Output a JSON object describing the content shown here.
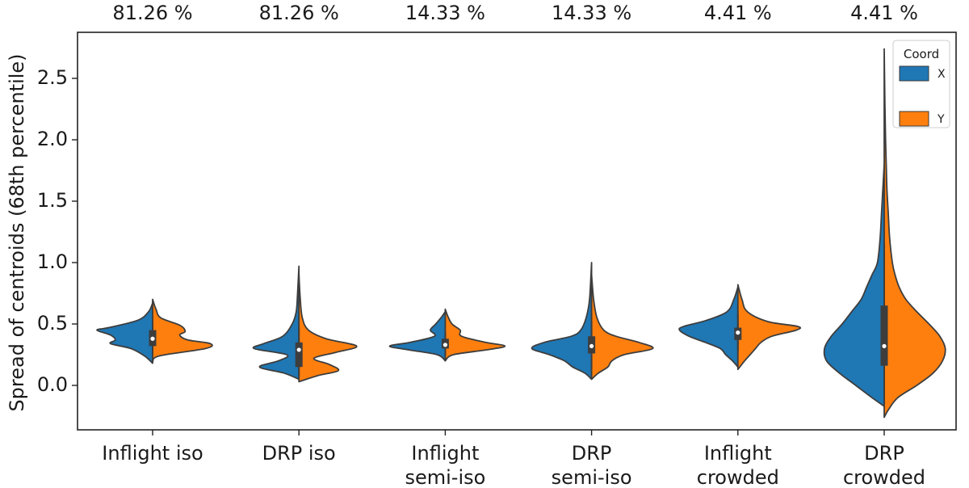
{
  "chart_data": {
    "type": "violin",
    "split": true,
    "title": "",
    "xlabel": "",
    "ylabel": "Spread of centroids (68th percentile)",
    "ylim": [
      -0.37,
      2.88
    ],
    "yticks": [
      "0.0",
      "0.5",
      "1.0",
      "1.5",
      "2.0",
      "2.5"
    ],
    "grid": false,
    "legend": {
      "title": "Coord",
      "position": "top-right",
      "entries": [
        {
          "label": "X",
          "color": "#1f77b4"
        },
        {
          "label": "Y",
          "color": "#ff7f0e"
        }
      ]
    },
    "categories": [
      {
        "lines": [
          "Inflight iso"
        ],
        "top_label": "81.26 %"
      },
      {
        "lines": [
          "DRP iso"
        ],
        "top_label": "81.26 %"
      },
      {
        "lines": [
          "Inflight",
          "semi-iso"
        ],
        "top_label": "14.33 %"
      },
      {
        "lines": [
          "DRP",
          "semi-iso"
        ],
        "top_label": "14.33 %"
      },
      {
        "lines": [
          "Inflight",
          "crowded"
        ],
        "top_label": "4.41 %"
      },
      {
        "lines": [
          "DRP",
          "crowded"
        ],
        "top_label": "4.41 %"
      }
    ],
    "series": [
      {
        "name": "X",
        "color": "#1f77b4",
        "violins": [
          [
            [
              0.18,
              0.0
            ],
            [
              0.24,
              0.12
            ],
            [
              0.3,
              0.32
            ],
            [
              0.34,
              0.62
            ],
            [
              0.37,
              0.55
            ],
            [
              0.41,
              0.62
            ],
            [
              0.45,
              0.82
            ],
            [
              0.47,
              0.65
            ],
            [
              0.53,
              0.22
            ],
            [
              0.6,
              0.06
            ],
            [
              0.67,
              0.0
            ]
          ],
          [
            [
              0.05,
              0.0
            ],
            [
              0.1,
              0.22
            ],
            [
              0.15,
              0.58
            ],
            [
              0.2,
              0.3
            ],
            [
              0.25,
              0.18
            ],
            [
              0.3,
              0.66
            ],
            [
              0.34,
              0.52
            ],
            [
              0.4,
              0.24
            ],
            [
              0.5,
              0.1
            ],
            [
              0.6,
              0.04
            ],
            [
              0.75,
              0.02
            ],
            [
              0.97,
              0.0
            ]
          ],
          [
            [
              0.2,
              0.0
            ],
            [
              0.25,
              0.12
            ],
            [
              0.29,
              0.55
            ],
            [
              0.32,
              0.82
            ],
            [
              0.35,
              0.52
            ],
            [
              0.4,
              0.16
            ],
            [
              0.45,
              0.22
            ],
            [
              0.5,
              0.14
            ],
            [
              0.56,
              0.05
            ],
            [
              0.6,
              0.0
            ]
          ],
          [
            [
              0.05,
              0.0
            ],
            [
              0.1,
              0.1
            ],
            [
              0.15,
              0.28
            ],
            [
              0.2,
              0.4
            ],
            [
              0.25,
              0.62
            ],
            [
              0.3,
              0.88
            ],
            [
              0.35,
              0.7
            ],
            [
              0.4,
              0.3
            ],
            [
              0.45,
              0.16
            ],
            [
              0.55,
              0.08
            ],
            [
              0.7,
              0.03
            ],
            [
              1.0,
              0.0
            ]
          ],
          [
            [
              0.15,
              0.0
            ],
            [
              0.2,
              0.08
            ],
            [
              0.25,
              0.18
            ],
            [
              0.3,
              0.26
            ],
            [
              0.35,
              0.48
            ],
            [
              0.4,
              0.72
            ],
            [
              0.45,
              0.86
            ],
            [
              0.48,
              0.8
            ],
            [
              0.53,
              0.46
            ],
            [
              0.6,
              0.16
            ],
            [
              0.7,
              0.06
            ],
            [
              0.8,
              0.0
            ]
          ],
          [
            [
              -0.17,
              0.0
            ],
            [
              -0.1,
              0.18
            ],
            [
              0.0,
              0.42
            ],
            [
              0.1,
              0.66
            ],
            [
              0.2,
              0.85
            ],
            [
              0.3,
              0.88
            ],
            [
              0.4,
              0.78
            ],
            [
              0.5,
              0.62
            ],
            [
              0.6,
              0.48
            ],
            [
              0.7,
              0.34
            ],
            [
              0.8,
              0.26
            ],
            [
              0.9,
              0.18
            ],
            [
              1.0,
              0.1
            ],
            [
              1.2,
              0.06
            ],
            [
              1.4,
              0.04
            ],
            [
              1.6,
              0.02
            ],
            [
              1.8,
              0.0
            ]
          ]
        ]
      },
      {
        "name": "Y",
        "color": "#ff7f0e",
        "violins": [
          [
            [
              0.19,
              0.0
            ],
            [
              0.24,
              0.1
            ],
            [
              0.3,
              0.78
            ],
            [
              0.34,
              0.85
            ],
            [
              0.37,
              0.52
            ],
            [
              0.41,
              0.4
            ],
            [
              0.44,
              0.48
            ],
            [
              0.49,
              0.4
            ],
            [
              0.55,
              0.12
            ],
            [
              0.62,
              0.05
            ],
            [
              0.7,
              0.0
            ]
          ],
          [
            [
              0.03,
              0.0
            ],
            [
              0.08,
              0.28
            ],
            [
              0.12,
              0.58
            ],
            [
              0.17,
              0.45
            ],
            [
              0.22,
              0.22
            ],
            [
              0.27,
              0.55
            ],
            [
              0.32,
              0.85
            ],
            [
              0.38,
              0.4
            ],
            [
              0.45,
              0.14
            ],
            [
              0.55,
              0.05
            ],
            [
              0.7,
              0.02
            ],
            [
              0.9,
              0.0
            ]
          ],
          [
            [
              0.2,
              0.0
            ],
            [
              0.25,
              0.12
            ],
            [
              0.29,
              0.62
            ],
            [
              0.32,
              0.88
            ],
            [
              0.35,
              0.6
            ],
            [
              0.4,
              0.24
            ],
            [
              0.45,
              0.22
            ],
            [
              0.5,
              0.1
            ],
            [
              0.56,
              0.04
            ],
            [
              0.62,
              0.0
            ]
          ],
          [
            [
              0.05,
              0.0
            ],
            [
              0.1,
              0.1
            ],
            [
              0.15,
              0.24
            ],
            [
              0.2,
              0.3
            ],
            [
              0.25,
              0.48
            ],
            [
              0.3,
              0.9
            ],
            [
              0.35,
              0.7
            ],
            [
              0.4,
              0.36
            ],
            [
              0.45,
              0.18
            ],
            [
              0.55,
              0.08
            ],
            [
              0.7,
              0.03
            ],
            [
              0.9,
              0.0
            ]
          ],
          [
            [
              0.13,
              0.0
            ],
            [
              0.2,
              0.1
            ],
            [
              0.25,
              0.18
            ],
            [
              0.3,
              0.26
            ],
            [
              0.35,
              0.34
            ],
            [
              0.4,
              0.5
            ],
            [
              0.45,
              0.86
            ],
            [
              0.48,
              0.88
            ],
            [
              0.52,
              0.44
            ],
            [
              0.6,
              0.14
            ],
            [
              0.7,
              0.06
            ],
            [
              0.82,
              0.0
            ]
          ],
          [
            [
              -0.26,
              0.0
            ],
            [
              -0.2,
              0.06
            ],
            [
              -0.1,
              0.2
            ],
            [
              0.0,
              0.48
            ],
            [
              0.1,
              0.72
            ],
            [
              0.2,
              0.86
            ],
            [
              0.3,
              0.9
            ],
            [
              0.4,
              0.82
            ],
            [
              0.5,
              0.66
            ],
            [
              0.6,
              0.48
            ],
            [
              0.7,
              0.32
            ],
            [
              0.8,
              0.22
            ],
            [
              0.9,
              0.16
            ],
            [
              1.0,
              0.12
            ],
            [
              1.2,
              0.08
            ],
            [
              1.4,
              0.06
            ],
            [
              1.6,
              0.04
            ],
            [
              1.8,
              0.03
            ],
            [
              2.0,
              0.02
            ],
            [
              2.3,
              0.01
            ],
            [
              2.74,
              0.0
            ]
          ]
        ]
      }
    ],
    "box": [
      {
        "q1": 0.32,
        "median": 0.38,
        "q3": 0.45,
        "lo": 0.25,
        "hi": 0.52
      },
      {
        "q1": 0.15,
        "median": 0.29,
        "q3": 0.35,
        "lo": 0.07,
        "hi": 0.47
      },
      {
        "q1": 0.3,
        "median": 0.33,
        "q3": 0.38,
        "lo": 0.24,
        "hi": 0.44
      },
      {
        "q1": 0.26,
        "median": 0.32,
        "q3": 0.4,
        "lo": 0.15,
        "hi": 0.52
      },
      {
        "q1": 0.37,
        "median": 0.43,
        "q3": 0.47,
        "lo": 0.28,
        "hi": 0.58
      },
      {
        "q1": 0.16,
        "median": 0.32,
        "q3": 0.65,
        "lo": -0.15,
        "hi": 1.15
      }
    ]
  }
}
